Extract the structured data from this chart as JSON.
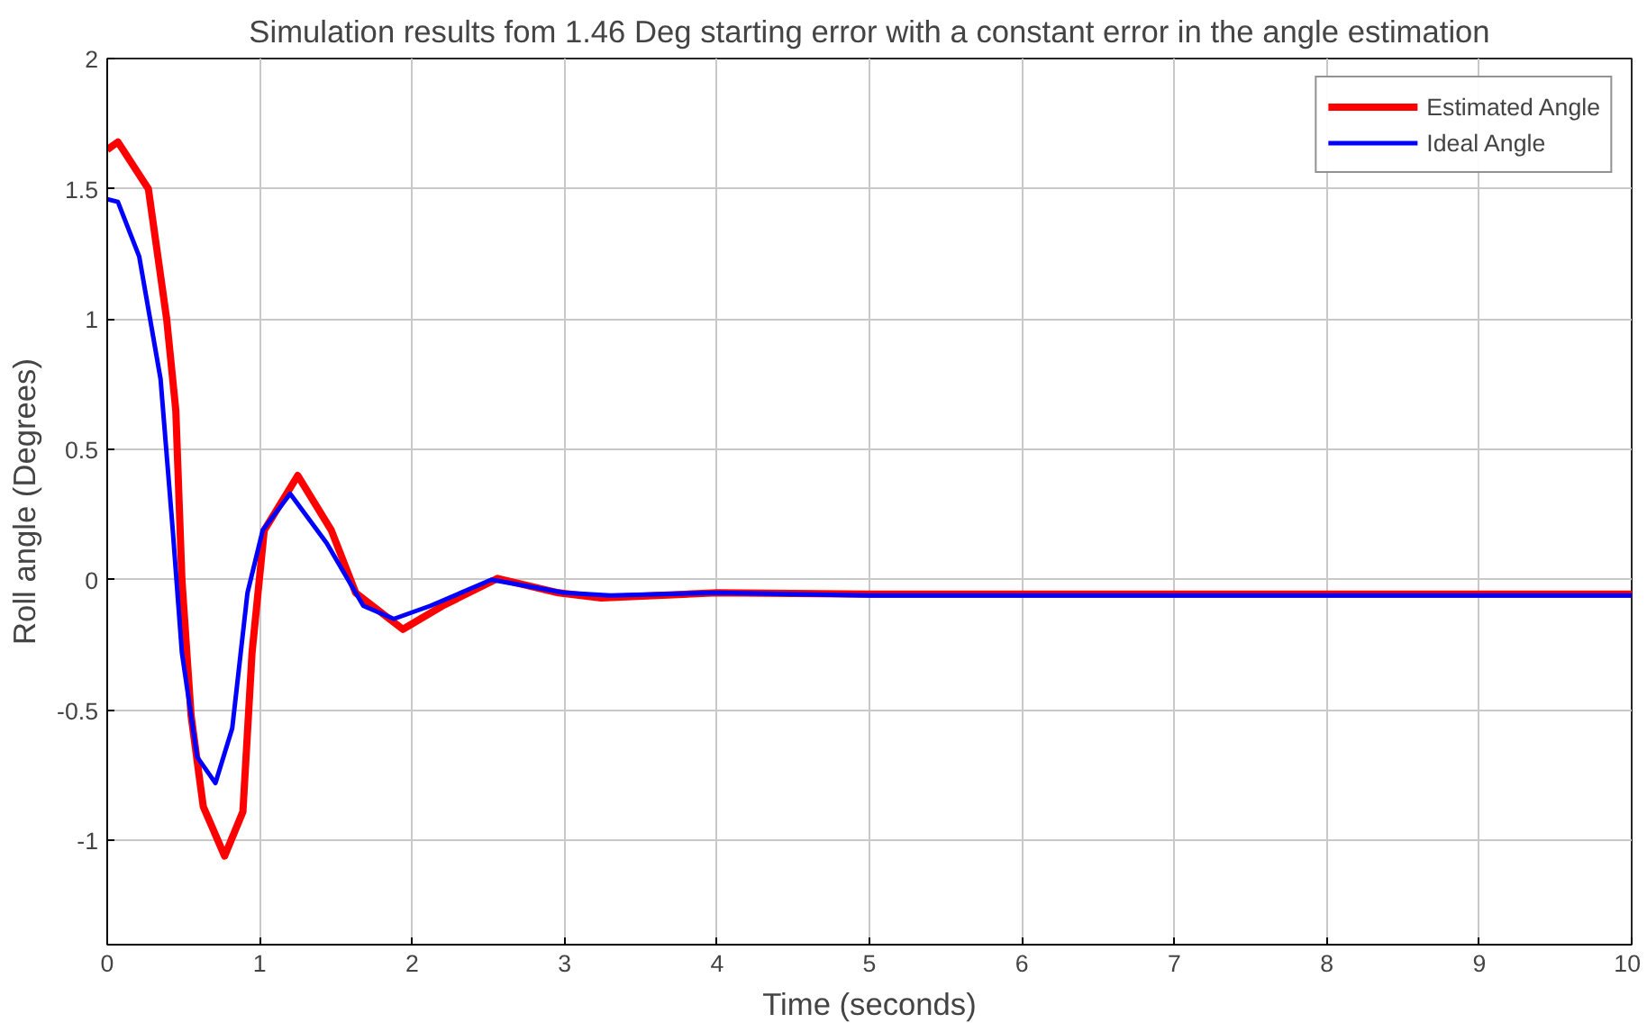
{
  "chart_data": {
    "type": "line",
    "title": "Simulation results fom 1.46 Deg starting error with a constant error in the angle estimation",
    "xlabel": "Time (seconds)",
    "ylabel": "Roll angle (Degrees)",
    "xlim": [
      0,
      10
    ],
    "ylim": [
      -1.4,
      2
    ],
    "xticks": [
      0,
      1,
      2,
      3,
      4,
      5,
      6,
      7,
      8,
      9,
      10
    ],
    "yticks": [
      -1,
      -0.5,
      0,
      0.5,
      1,
      1.5,
      2
    ],
    "grid": true,
    "legend": "top right",
    "line_style": "solid",
    "marker": "none",
    "series": [
      {
        "name": "Estimated Angle",
        "color": "#ff0000",
        "x": [
          0,
          0.07,
          0.27,
          0.39,
          0.45,
          0.49,
          0.55,
          0.63,
          0.77,
          0.89,
          0.95,
          1.03,
          1.25,
          1.47,
          1.63,
          1.94,
          2.2,
          2.56,
          2.96,
          3.24,
          4,
          5,
          6,
          7,
          8,
          9,
          10
        ],
        "values": [
          1.65,
          1.68,
          1.5,
          1.0,
          0.65,
          0,
          -0.52,
          -0.87,
          -1.06,
          -0.89,
          -0.28,
          0.19,
          0.4,
          0.19,
          -0.05,
          -0.19,
          -0.1,
          0.005,
          -0.05,
          -0.07,
          -0.05,
          -0.055,
          -0.055,
          -0.055,
          -0.055,
          -0.055,
          -0.055
        ]
      },
      {
        "name": "Ideal Angle",
        "color": "#0000ff",
        "x": [
          0,
          0.07,
          0.21,
          0.35,
          0.43,
          0.49,
          0.59,
          0.71,
          0.82,
          0.92,
          1.02,
          1.2,
          1.44,
          1.68,
          1.88,
          2.12,
          2.52,
          3.0,
          3.3,
          4,
          5,
          6,
          7,
          8,
          9,
          10
        ],
        "values": [
          1.46,
          1.45,
          1.24,
          0.77,
          0.19,
          -0.28,
          -0.68,
          -0.78,
          -0.57,
          -0.05,
          0.19,
          0.33,
          0.14,
          -0.1,
          -0.15,
          -0.1,
          0,
          -0.05,
          -0.06,
          -0.05,
          -0.06,
          -0.06,
          -0.06,
          -0.06,
          -0.06,
          -0.06
        ]
      }
    ]
  }
}
